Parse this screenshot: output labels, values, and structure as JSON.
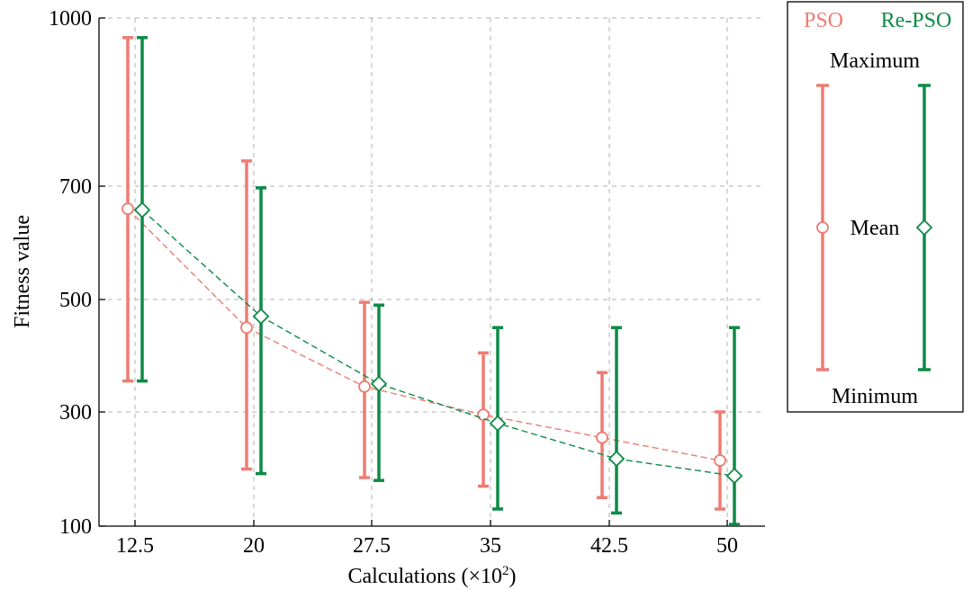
{
  "chart_data": {
    "type": "errorbar-line",
    "title": "",
    "xlabel": "Calculations (×10",
    "xlabel_exp": "2",
    "xlabel_close": ")",
    "ylabel": "Fitness value",
    "categories": [
      "12.5",
      "20",
      "27.5",
      "35",
      "42.5",
      "50"
    ],
    "yticks": [
      100,
      300,
      500,
      700,
      1000
    ],
    "ylim": [
      100,
      1000
    ],
    "grid": true,
    "series": [
      {
        "name": "PSO",
        "color": "#ee7c73",
        "marker": "circle",
        "mean": [
          660,
          450,
          345,
          295,
          255,
          215
        ],
        "max": [
          965,
          745,
          495,
          405,
          370,
          300
        ],
        "min": [
          355,
          200,
          185,
          170,
          150,
          130
        ]
      },
      {
        "name": "Re-PSO",
        "color": "#0e8a47",
        "marker": "diamond",
        "mean": [
          658,
          470,
          350,
          280,
          218,
          188
        ],
        "max": [
          965,
          697,
          490,
          450,
          450,
          450
        ],
        "min": [
          355,
          192,
          180,
          130,
          123,
          103
        ]
      }
    ]
  },
  "legend": {
    "pso": "PSO",
    "repso": "Re-PSO",
    "maximum": "Maximum",
    "mean": "Mean",
    "minimum": "Minimum"
  }
}
